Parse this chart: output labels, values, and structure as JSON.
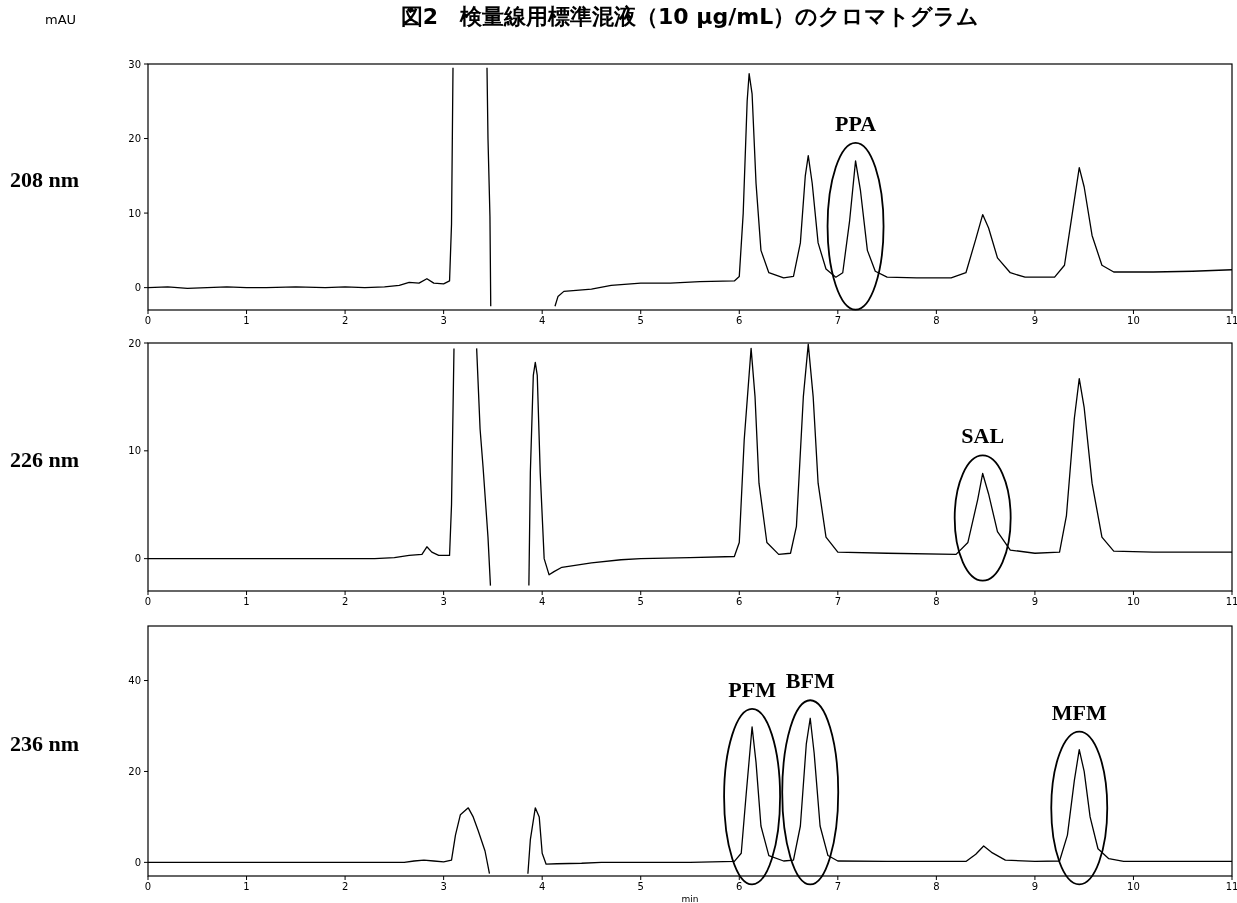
{
  "chart_data": [
    {
      "type": "line",
      "title": "図2　検量線用標準混液（10 μg/mL）のクロマトグラム",
      "ylabel": "208 nm",
      "annotations": [
        "mAU",
        {
          "text": "PPA",
          "x": 7.18,
          "y": 17.0
        }
      ],
      "xlim": [
        0,
        11
      ],
      "xticks": [
        0,
        1,
        2,
        3,
        4,
        5,
        6,
        7,
        8,
        9,
        10,
        11
      ],
      "ylim": [
        -3,
        30
      ],
      "yticks": [
        0,
        10,
        20,
        30
      ],
      "series": [
        {
          "color": "#000000",
          "x": [
            0,
            0.2,
            0.4,
            0.6,
            0.8,
            1.0,
            1.2,
            1.5,
            1.8,
            2.0,
            2.2,
            2.4,
            2.55,
            2.65,
            2.75,
            2.83,
            2.9,
            3.0,
            3.06,
            3.08,
            3.095,
            3.1,
            3.43,
            3.44,
            3.45,
            3.47,
            3.478,
            3.48,
            4.12,
            4.13,
            4.16,
            4.22,
            4.5,
            4.7,
            5.0,
            5.3,
            5.6,
            5.95,
            6.0,
            6.04,
            6.08,
            6.1,
            6.13,
            6.17,
            6.22,
            6.3,
            6.45,
            6.55,
            6.62,
            6.67,
            6.7,
            6.74,
            6.8,
            6.88,
            6.98,
            7.05,
            7.12,
            7.18,
            7.23,
            7.3,
            7.38,
            7.5,
            7.8,
            8.15,
            8.3,
            8.4,
            8.47,
            8.53,
            8.62,
            8.75,
            8.9,
            9.2,
            9.3,
            9.38,
            9.45,
            9.5,
            9.58,
            9.68,
            9.8,
            10.2,
            10.6,
            11
          ],
          "values": [
            0,
            0.1,
            -0.1,
            0,
            0.1,
            0,
            0,
            0.1,
            0,
            0.1,
            0,
            0.1,
            0.3,
            0.7,
            0.6,
            1.2,
            0.6,
            0.5,
            0.9,
            8.5,
            29.5,
            null,
            null,
            29.5,
            20,
            9.5,
            -2.5,
            null,
            null,
            -2.5,
            -1.2,
            -0.5,
            -0.2,
            0.3,
            0.6,
            0.6,
            0.8,
            0.9,
            1.5,
            10,
            25,
            28.7,
            26,
            14,
            5,
            2,
            1.3,
            1.5,
            6,
            15,
            17.7,
            14,
            6,
            2.5,
            1.4,
            2,
            9,
            17.0,
            13,
            5,
            2.2,
            1.4,
            1.3,
            1.3,
            2,
            6.5,
            9.8,
            8,
            4,
            2,
            1.4,
            1.4,
            3,
            10,
            16.1,
            13.5,
            7,
            3,
            2.1,
            2.1,
            2.2,
            2.4
          ]
        }
      ]
    },
    {
      "type": "line",
      "ylabel": "226 nm",
      "annotations": [
        {
          "text": "SAL",
          "x": 8.47,
          "y": 7.9
        }
      ],
      "xlim": [
        0,
        11
      ],
      "xticks": [
        0,
        1,
        2,
        3,
        4,
        5,
        6,
        7,
        8,
        9,
        10,
        11
      ],
      "ylim": [
        -3,
        20
      ],
      "yticks": [
        0,
        10,
        20
      ],
      "series": [
        {
          "color": "#000000",
          "x": [
            0,
            0.5,
            1.0,
            1.5,
            2.0,
            2.3,
            2.5,
            2.65,
            2.78,
            2.83,
            2.88,
            2.95,
            3.06,
            3.08,
            3.105,
            3.11,
            3.33,
            3.335,
            3.37,
            3.4,
            3.45,
            3.475,
            3.48,
            3.86,
            3.865,
            3.88,
            3.91,
            3.93,
            3.95,
            3.98,
            4.02,
            4.07,
            4.12,
            4.2,
            4.5,
            4.8,
            5.0,
            5.5,
            5.95,
            6.0,
            6.05,
            6.12,
            6.16,
            6.2,
            6.28,
            6.4,
            6.52,
            6.58,
            6.65,
            6.7,
            6.75,
            6.8,
            6.88,
            7.0,
            7.5,
            8.2,
            8.32,
            8.42,
            8.47,
            8.53,
            8.62,
            8.75,
            9.0,
            9.25,
            9.32,
            9.4,
            9.45,
            9.5,
            9.58,
            9.68,
            9.8,
            10.2,
            11
          ],
          "values": [
            0,
            0,
            0,
            0,
            0,
            0,
            0.1,
            0.3,
            0.4,
            1.1,
            0.6,
            0.3,
            0.3,
            5,
            19.5,
            null,
            null,
            19.5,
            12,
            8.5,
            2,
            -2.5,
            null,
            null,
            -2.5,
            8,
            17,
            18.2,
            17,
            8,
            0,
            -1.5,
            -1.2,
            -0.8,
            -0.4,
            -0.1,
            0,
            0.1,
            0.2,
            1.5,
            11,
            19.5,
            15,
            7,
            1.5,
            0.4,
            0.5,
            3,
            15,
            19.9,
            15,
            7,
            2,
            0.6,
            0.5,
            0.4,
            1.5,
            5.5,
            7.9,
            6,
            2.5,
            0.8,
            0.5,
            0.6,
            4,
            13,
            16.7,
            14,
            7,
            2,
            0.7,
            0.6,
            0.6
          ]
        }
      ]
    },
    {
      "type": "line",
      "ylabel": "236 nm",
      "xlabel": "min",
      "annotations": [
        {
          "text": "PFM",
          "x": 6.13,
          "y": 29.8
        },
        {
          "text": "BFM",
          "x": 6.72,
          "y": 31.7
        },
        {
          "text": "MFM",
          "x": 9.45,
          "y": 24.8
        }
      ],
      "xlim": [
        0,
        11
      ],
      "xticks": [
        0,
        1,
        2,
        3,
        4,
        5,
        6,
        7,
        8,
        9,
        10,
        11
      ],
      "ylim": [
        -3,
        52
      ],
      "yticks": [
        0,
        20,
        40
      ],
      "series": [
        {
          "color": "#000000",
          "x": [
            0,
            1,
            2,
            2.6,
            2.7,
            2.8,
            2.9,
            3.0,
            3.08,
            3.12,
            3.17,
            3.25,
            3.3,
            3.35,
            3.42,
            3.465,
            3.47,
            3.85,
            3.855,
            3.88,
            3.93,
            3.97,
            4.0,
            4.04,
            4.15,
            4.4,
            4.6,
            5.0,
            5.5,
            5.95,
            6.02,
            6.07,
            6.13,
            6.17,
            6.22,
            6.3,
            6.45,
            6.55,
            6.62,
            6.68,
            6.72,
            6.76,
            6.82,
            6.9,
            7.0,
            7.5,
            8.3,
            8.4,
            8.48,
            8.56,
            8.7,
            9.0,
            9.25,
            9.33,
            9.4,
            9.45,
            9.5,
            9.56,
            9.64,
            9.75,
            9.9,
            11
          ],
          "values": [
            0,
            0,
            0,
            0,
            0.3,
            0.5,
            0.3,
            0.1,
            0.5,
            6,
            10.5,
            12,
            10,
            7,
            2.5,
            -2.5,
            null,
            null,
            -2.5,
            5,
            12,
            10,
            2,
            -0.4,
            -0.3,
            -0.2,
            0,
            0,
            0,
            0.2,
            2,
            15,
            29.8,
            22,
            8,
            1.5,
            0.3,
            0.5,
            8,
            26,
            31.7,
            24,
            8,
            1.5,
            0.3,
            0.2,
            0.2,
            1.8,
            3.6,
            2.2,
            0.5,
            0.2,
            0.3,
            6,
            18,
            24.8,
            20,
            10,
            3,
            0.8,
            0.2,
            0.2
          ]
        }
      ]
    }
  ]
}
